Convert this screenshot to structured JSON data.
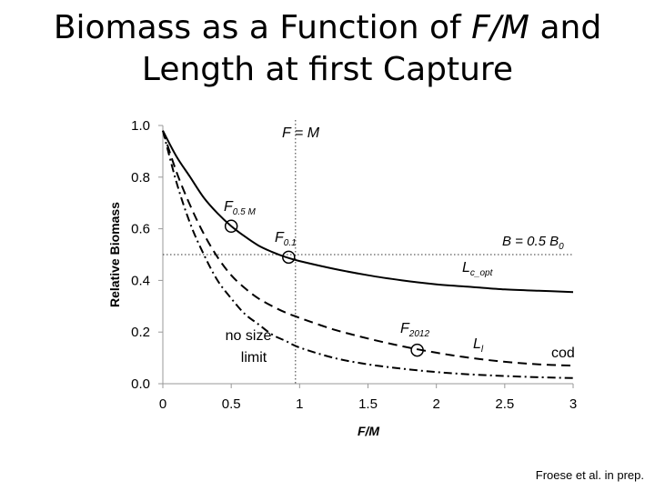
{
  "slide": {
    "title_line1_a": "Biomass as a Function of ",
    "title_line1_italic": "F/M",
    "title_line1_b": " and",
    "title_line2": "Length at first Capture",
    "credit": "Froese et al. in prep."
  },
  "chart_data": {
    "type": "line",
    "xlabel": "F/M",
    "ylabel": "Relative Biomass",
    "xlim": [
      0,
      3
    ],
    "ylim": [
      0,
      1
    ],
    "x_ticks": [
      "0",
      "0.5",
      "1",
      "1.5",
      "2",
      "2.5",
      "3"
    ],
    "y_ticks": [
      "0.0",
      "0.2",
      "0.4",
      "0.6",
      "0.8",
      "1.0"
    ],
    "x_tick_values": [
      0,
      0.5,
      1,
      1.5,
      2,
      2.5,
      3
    ],
    "y_tick_values": [
      0,
      0.2,
      0.4,
      0.6,
      0.8,
      1.0
    ],
    "grid": false,
    "series": [
      {
        "name": "Lc_opt",
        "style": "solid",
        "x": [
          0,
          0.1,
          0.2,
          0.3,
          0.4,
          0.5,
          0.6,
          0.7,
          0.8,
          0.9,
          1.0,
          1.25,
          1.5,
          1.75,
          2.0,
          2.25,
          2.5,
          2.75,
          3.0
        ],
        "y": [
          0.98,
          0.88,
          0.8,
          0.72,
          0.66,
          0.61,
          0.57,
          0.535,
          0.51,
          0.49,
          0.475,
          0.445,
          0.42,
          0.4,
          0.385,
          0.375,
          0.365,
          0.36,
          0.355
        ]
      },
      {
        "name": "Ll",
        "style": "dashed",
        "x": [
          0,
          0.1,
          0.2,
          0.3,
          0.4,
          0.5,
          0.6,
          0.7,
          0.8,
          0.9,
          1.0,
          1.25,
          1.5,
          1.75,
          2.0,
          2.25,
          2.5,
          2.75,
          3.0
        ],
        "y": [
          0.98,
          0.82,
          0.69,
          0.58,
          0.49,
          0.42,
          0.37,
          0.33,
          0.3,
          0.275,
          0.255,
          0.21,
          0.175,
          0.145,
          0.12,
          0.1,
          0.085,
          0.075,
          0.07
        ]
      },
      {
        "name": "no size limit",
        "style": "dashdot",
        "x": [
          0,
          0.1,
          0.2,
          0.3,
          0.4,
          0.5,
          0.6,
          0.7,
          0.8,
          0.9,
          1.0,
          1.25,
          1.5,
          1.75,
          2.0,
          2.25,
          2.5,
          2.75,
          3.0
        ],
        "y": [
          0.98,
          0.78,
          0.62,
          0.5,
          0.4,
          0.33,
          0.27,
          0.23,
          0.19,
          0.165,
          0.14,
          0.1,
          0.075,
          0.058,
          0.045,
          0.036,
          0.03,
          0.025,
          0.022
        ]
      }
    ],
    "reference_lines": [
      {
        "label": "F = M",
        "orientation": "vertical",
        "x": 0.97
      },
      {
        "label": "B = 0.5 B0",
        "orientation": "horizontal",
        "y": 0.5
      }
    ],
    "markers": [
      {
        "label": "F0.5 M",
        "x": 0.5,
        "y": 0.61
      },
      {
        "label": "F0.1",
        "x": 0.92,
        "y": 0.49
      },
      {
        "label": "F2012",
        "x": 1.86,
        "y": 0.13
      }
    ],
    "annotations": {
      "fm_line": "F = M",
      "half_b_main": "B = 0.5 B",
      "half_b_sub": "0",
      "f05_main": "F",
      "f05_sub": "0.5 M",
      "f01_main": "F",
      "f01_sub": "0.1",
      "f2012_main": "F",
      "f2012_sub": "2012",
      "lc_main": "L",
      "lc_sub": "c_opt",
      "ll_main": "L",
      "ll_sub": "l",
      "cod": "cod",
      "nosize_1": "no size",
      "nosize_2": "limit"
    }
  }
}
